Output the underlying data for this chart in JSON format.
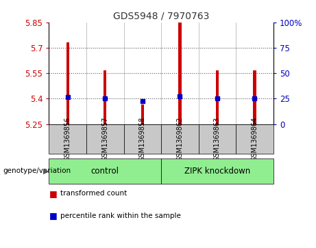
{
  "title": "GDS5948 / 7970763",
  "samples": [
    "GSM1369856",
    "GSM1369857",
    "GSM1369858",
    "GSM1369862",
    "GSM1369863",
    "GSM1369864"
  ],
  "bar_values": [
    5.73,
    5.565,
    5.365,
    5.85,
    5.565,
    5.565
  ],
  "blue_values": [
    5.41,
    5.4,
    5.385,
    5.415,
    5.4,
    5.4
  ],
  "ymin": 5.25,
  "ymax": 5.85,
  "yticks_left": [
    5.25,
    5.4,
    5.55,
    5.7,
    5.85
  ],
  "yticks_right": [
    0,
    25,
    50,
    75,
    100
  ],
  "bar_color": "#cc0000",
  "blue_color": "#0000cc",
  "group_labels": [
    "control",
    "ZIPK knockdown"
  ],
  "group_ranges": [
    [
      0,
      3
    ],
    [
      3,
      6
    ]
  ],
  "sample_bg_color": "#c8c8c8",
  "legend_bar_label": "transformed count",
  "legend_blue_label": "percentile rank within the sample",
  "genotype_label": "genotype/variation",
  "dotted_line_color": "#555555",
  "title_color": "#333333",
  "left_tick_color": "#cc0000",
  "right_tick_color": "#0000bb",
  "bar_width": 0.08,
  "plot_bg_color": "#ffffff",
  "green_color": "#90ee90"
}
